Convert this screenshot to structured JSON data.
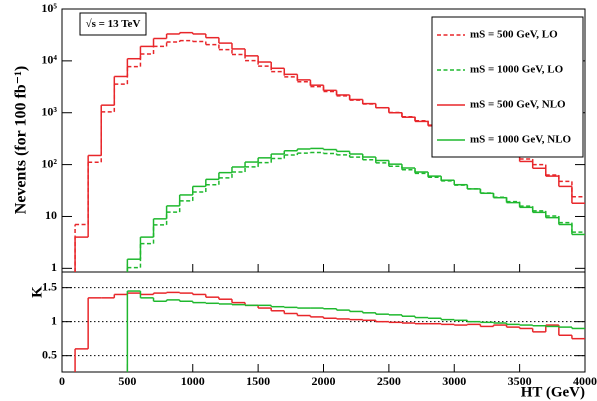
{
  "chart_data": [
    {
      "type": "histogram",
      "ylabel": "Nevents (for 100 fb⁻¹)",
      "annotation": "√s = 13 TeV",
      "log_y": true,
      "legend": "upper right",
      "xlim": [
        0,
        4000
      ],
      "ylim": [
        0.85,
        100000
      ],
      "yticks": [
        1,
        10,
        {
          "value": 100,
          "label": "10²"
        },
        {
          "value": 1000,
          "label": "10³"
        },
        {
          "value": 10000,
          "label": "10⁴"
        },
        {
          "value": 100000,
          "label": "10⁵"
        }
      ],
      "bins": [
        0,
        100,
        200,
        300,
        400,
        500,
        600,
        700,
        800,
        900,
        1000,
        1100,
        1200,
        1300,
        1400,
        1500,
        1600,
        1700,
        1800,
        1900,
        2000,
        2100,
        2200,
        2300,
        2400,
        2500,
        2600,
        2700,
        2800,
        2900,
        3000,
        3100,
        3200,
        3300,
        3400,
        3500,
        3600,
        3700,
        3800,
        3900,
        4000
      ],
      "series": [
        {
          "name": "mS = 500  GeV, LO",
          "color": "#e8262a",
          "dashed": true,
          "values": [
            null,
            7,
            111,
            1040,
            3570,
            7750,
            13600,
            19000,
            23100,
            24600,
            23600,
            20600,
            16500,
            13300,
            10100,
            7900,
            6200,
            4900,
            3950,
            3180,
            2570,
            2115,
            1750,
            1470,
            1250,
            1010,
            837,
            701,
            577,
            479,
            389,
            312,
            258,
            200,
            163,
            128,
            100,
            63,
            47.5,
            24
          ]
        },
        {
          "name": "mS = 1000 GeV, LO",
          "color": "#1fb82e",
          "dashed": true,
          "values": [
            null,
            null,
            null,
            null,
            null,
            1.03,
            3,
            6.9,
            12.1,
            20,
            29.7,
            40.9,
            55.6,
            72,
            90.3,
            108.9,
            131,
            152.9,
            166.7,
            170.8,
            163.9,
            153.8,
            139.1,
            123.9,
            108.1,
            92.7,
            79.6,
            67.9,
            57.1,
            48.5,
            40.2,
            34,
            28.3,
            23.5,
            19.3,
            15.8,
            12.8,
            10.2,
            7.6,
            5
          ]
        },
        {
          "name": "mS = 500  GeV, NLO",
          "color": "#e8262a",
          "dashed": false,
          "values": [
            null,
            4,
            150,
            1400,
            5000,
            11000,
            19000,
            27000,
            33000,
            35000,
            33000,
            28000,
            22000,
            17000,
            12500,
            9500,
            7200,
            5500,
            4300,
            3400,
            2700,
            2200,
            1800,
            1500,
            1250,
            1000,
            820,
            680,
            560,
            460,
            370,
            300,
            240,
            190,
            150,
            115,
            85,
            60,
            38,
            18
          ]
        },
        {
          "name": "mS = 1000 GeV, NLO",
          "color": "#1fb82e",
          "dashed": false,
          "values": [
            null,
            null,
            null,
            null,
            null,
            1.5,
            4,
            9,
            16,
            26,
            38,
            52,
            70,
            90,
            112,
            135,
            160,
            185,
            200,
            205,
            195,
            180,
            160,
            140,
            120,
            102,
            86,
            72,
            60,
            50,
            41,
            34,
            28,
            23,
            18.5,
            15,
            12,
            9.5,
            7,
            4.5
          ]
        }
      ]
    },
    {
      "type": "histogram",
      "ylabel": "K",
      "xlabel": "HT (GeV)",
      "grid": "dotted",
      "xlim": [
        0,
        4000
      ],
      "xticks": [
        0,
        500,
        1000,
        1500,
        2000,
        2500,
        3000,
        3500,
        4000
      ],
      "ylim": [
        0.26,
        1.73
      ],
      "yticks": [
        0.5,
        1,
        1.5
      ],
      "bins": [
        0,
        100,
        200,
        300,
        400,
        500,
        600,
        700,
        800,
        900,
        1000,
        1100,
        1200,
        1300,
        1400,
        1500,
        1600,
        1700,
        1800,
        1900,
        2000,
        2100,
        2200,
        2300,
        2400,
        2500,
        2600,
        2700,
        2800,
        2900,
        3000,
        3100,
        3200,
        3300,
        3400,
        3500,
        3600,
        3700,
        3800,
        3900,
        4000
      ],
      "series": [
        {
          "color": "#e8262a",
          "values": [
            null,
            0.6,
            1.35,
            1.35,
            1.4,
            1.42,
            1.4,
            1.42,
            1.43,
            1.42,
            1.4,
            1.36,
            1.33,
            1.28,
            1.24,
            1.2,
            1.16,
            1.12,
            1.09,
            1.07,
            1.05,
            1.04,
            1.03,
            1.02,
            1,
            0.99,
            0.98,
            0.97,
            0.97,
            0.96,
            0.95,
            0.96,
            0.93,
            0.95,
            0.92,
            0.9,
            0.85,
            0.95,
            0.8,
            0.75
          ]
        },
        {
          "color": "#1fb82e",
          "values": [
            null,
            null,
            null,
            null,
            null,
            1.45,
            1.35,
            1.3,
            1.32,
            1.3,
            1.28,
            1.27,
            1.26,
            1.25,
            1.24,
            1.24,
            1.22,
            1.21,
            1.2,
            1.2,
            1.19,
            1.17,
            1.15,
            1.13,
            1.11,
            1.1,
            1.08,
            1.06,
            1.05,
            1.03,
            1.02,
            1,
            0.99,
            0.98,
            0.96,
            0.95,
            0.94,
            0.93,
            0.92,
            0.9
          ]
        }
      ]
    }
  ]
}
